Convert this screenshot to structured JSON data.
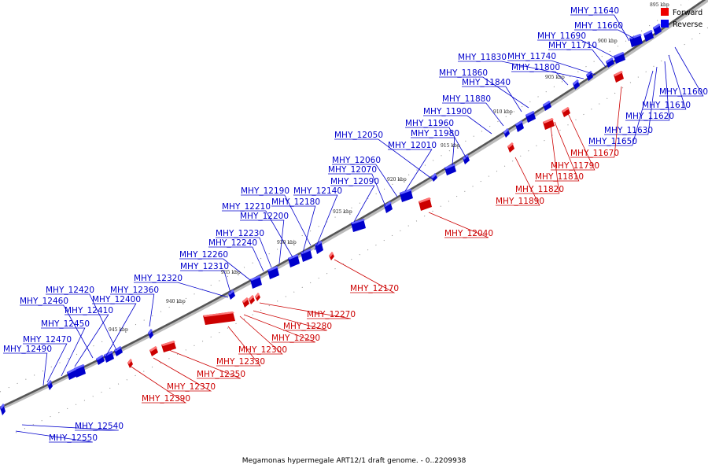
{
  "caption": "Megamonas hypermegale ART12/1 draft genome. - 0..2209938",
  "legend": [
    {
      "label": "Forward",
      "color": "#ee0000"
    },
    {
      "label": "Reverse",
      "color": "#0000ee"
    }
  ],
  "colors": {
    "forward": "#ee0000",
    "reverse": "#0000ee",
    "backbone": "#555555"
  },
  "kbp_ticks": [
    "895 kbp",
    "900 kbp",
    "905 kbp",
    "910 kbp",
    "915 kbp",
    "920 kbp",
    "925 kbp",
    "930 kbp",
    "935 kbp",
    "940 kbp",
    "945 kbp"
  ],
  "reverse_genes": [
    "MHY_11640",
    "MHY_11660",
    "MHY_11690",
    "MHY_11710",
    "MHY_11830",
    "MHY_11740",
    "MHY_11800",
    "MHY_11860",
    "MHY_11840",
    "MHY_11880",
    "MHY_11900",
    "MHY_11960",
    "MHY_11980",
    "MHY_12050",
    "MHY_12010",
    "MHY_12060",
    "MHY_12070",
    "MHY_12090",
    "MHY_12190",
    "MHY_12140",
    "MHY_12180",
    "MHY_12210",
    "MHY_12200",
    "MHY_12230",
    "MHY_12240",
    "MHY_12260",
    "MHY_12310",
    "MHY_12320",
    "MHY_12360",
    "MHY_12420",
    "MHY_12400",
    "MHY_12460",
    "MHY_12410",
    "MHY_12450",
    "MHY_12470",
    "MHY_12490",
    "MHY_11600",
    "MHY_11610",
    "MHY_11620",
    "MHY_11630",
    "MHY_11650",
    "MHY_12540",
    "MHY_12550"
  ],
  "forward_genes": [
    "MHY_11670",
    "MHY_11790",
    "MHY_11810",
    "MHY_11820",
    "MHY_11890",
    "MHY_12040",
    "MHY_12170",
    "MHY_12270",
    "MHY_12280",
    "MHY_12290",
    "MHY_12300",
    "MHY_12330",
    "MHY_12350",
    "MHY_12370",
    "MHY_12390"
  ]
}
